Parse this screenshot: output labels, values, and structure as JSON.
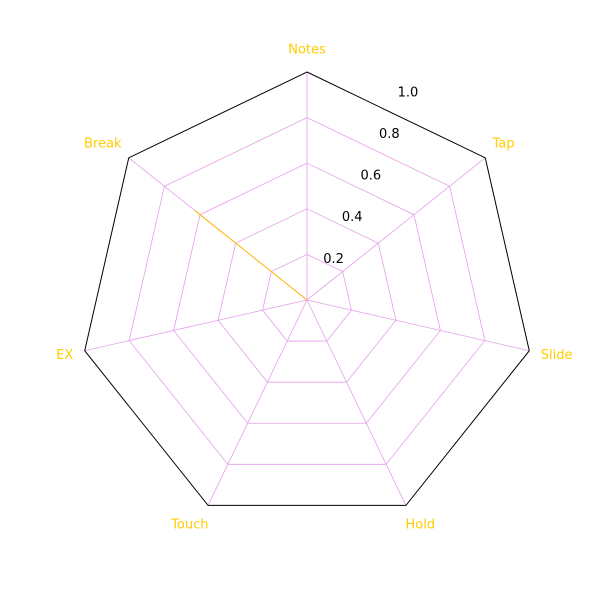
{
  "chart_data": {
    "type": "radar",
    "categories": [
      "Notes",
      "Tap",
      "Slide",
      "Hold",
      "Touch",
      "EX",
      "Break"
    ],
    "series": [
      {
        "values": [
          0.0,
          0.0,
          0.0,
          0.0,
          0.0,
          0.0,
          0.63
        ]
      }
    ],
    "rlim": [
      0,
      1.0
    ],
    "rticks": [
      0.2,
      0.4,
      0.6,
      0.8,
      1.0
    ],
    "rtick_labels": [
      "0.2",
      "0.4",
      "0.6",
      "0.8",
      "1.0"
    ],
    "grid": true,
    "colors": {
      "fill": "#ffbb00",
      "grid": "#e3a0e8",
      "frame": "#000000",
      "axis_label": "#ffcc00",
      "tick_label": "#000000"
    }
  }
}
